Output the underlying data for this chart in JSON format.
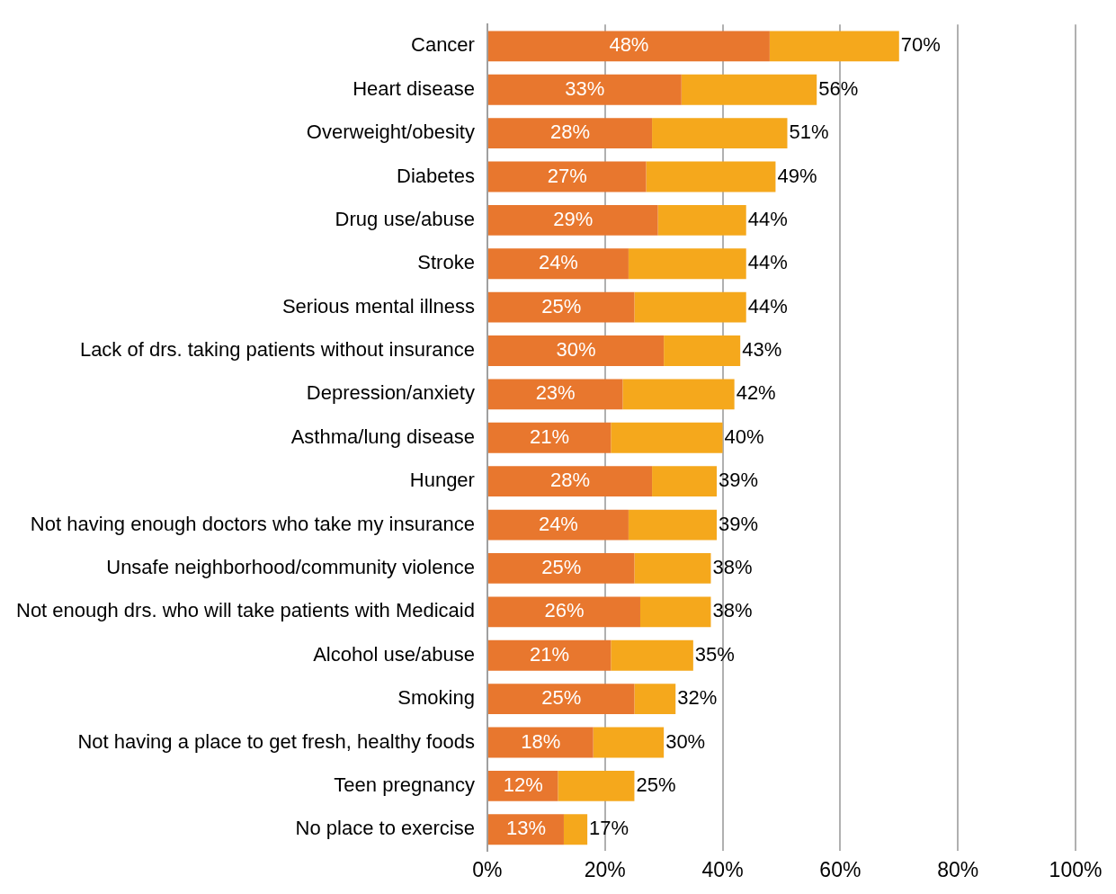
{
  "chart_data": {
    "type": "bar",
    "orientation": "horizontal",
    "stacked": true,
    "grid": "x",
    "categories": [
      "Cancer",
      "Heart disease",
      "Overweight/obesity",
      "Diabetes",
      "Drug use/abuse",
      "Stroke",
      "Serious mental illness",
      "Lack of drs. taking patients without insurance",
      "Depression/anxiety",
      "Asthma/lung disease",
      "Hunger",
      "Not having enough doctors who take my insurance",
      "Unsafe neighborhood/community violence",
      "Not enough drs. who will take patients with Medicaid",
      "Alcohol use/abuse",
      "Smoking",
      "Not having a place to get fresh, healthy foods",
      "Teen pregnancy",
      "No place to exercise"
    ],
    "series": [
      {
        "color": "#e8772e",
        "values": [
          48,
          33,
          28,
          27,
          29,
          24,
          25,
          30,
          23,
          21,
          28,
          24,
          25,
          26,
          21,
          25,
          18,
          12,
          13
        ],
        "value_labels": [
          "48%",
          "33%",
          "28%",
          "27%",
          "29%",
          "24%",
          "25%",
          "30%",
          "23%",
          "21%",
          "28%",
          "24%",
          "25%",
          "26%",
          "21%",
          "25%",
          "18%",
          "12%",
          "13%"
        ]
      },
      {
        "color": "#f5a81c",
        "values": [
          22,
          23,
          23,
          22,
          15,
          20,
          19,
          13,
          19,
          19,
          11,
          15,
          13,
          12,
          14,
          7,
          12,
          13,
          4
        ]
      }
    ],
    "totals": [
      "70%",
      "56%",
      "51%",
      "49%",
      "44%",
      "44%",
      "44%",
      "43%",
      "42%",
      "40%",
      "39%",
      "39%",
      "38%",
      "38%",
      "35%",
      "32%",
      "30%",
      "25%",
      "17%"
    ],
    "xlim": [
      0,
      100
    ],
    "xticks": [
      {
        "value": 0,
        "label": "0%"
      },
      {
        "value": 20,
        "label": "20%"
      },
      {
        "value": 40,
        "label": "40%"
      },
      {
        "value": 60,
        "label": "60%"
      },
      {
        "value": 80,
        "label": "80%"
      },
      {
        "value": 100,
        "label": "100%"
      }
    ]
  }
}
